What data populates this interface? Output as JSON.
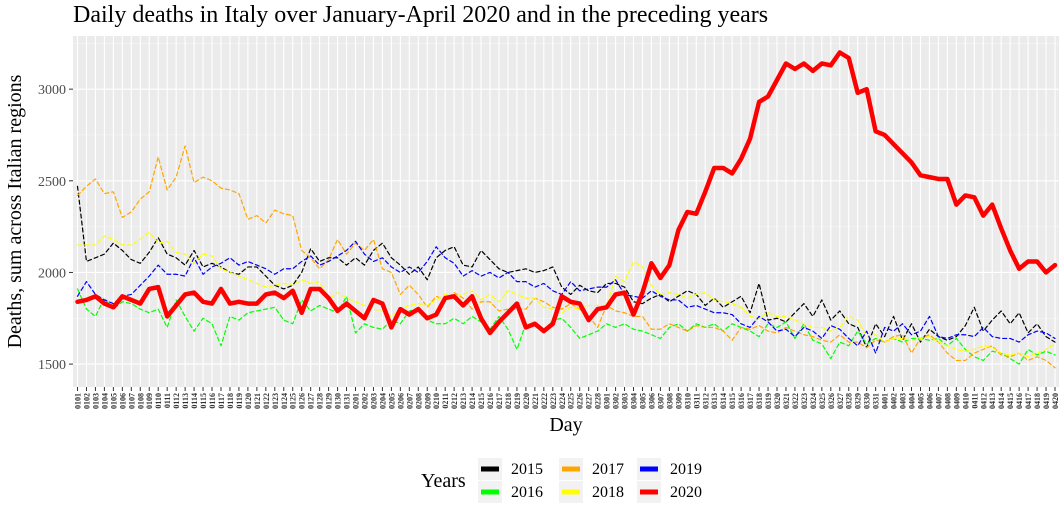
{
  "chart_data": {
    "type": "line",
    "title": "Daily deaths in Italy over January-April 2020 and in the preceding years",
    "xlabel": "Day",
    "ylabel": "Deaths, sum across Italian regions",
    "ylim": [
      1375,
      3290
    ],
    "y_ticks": [
      1500,
      2000,
      2500,
      3000
    ],
    "grid": true,
    "legend_placement": "bottom",
    "legend_title": "Years",
    "categories": [
      "0101",
      "0102",
      "0103",
      "0104",
      "0105",
      "0106",
      "0107",
      "0108",
      "0109",
      "0110",
      "0111",
      "0112",
      "0113",
      "0114",
      "0115",
      "0116",
      "0117",
      "0118",
      "0119",
      "0120",
      "0121",
      "0122",
      "0123",
      "0124",
      "0125",
      "0126",
      "0127",
      "0128",
      "0129",
      "0130",
      "0131",
      "0201",
      "0202",
      "0203",
      "0204",
      "0205",
      "0206",
      "0207",
      "0208",
      "0209",
      "0210",
      "0211",
      "0212",
      "0213",
      "0214",
      "0215",
      "0216",
      "0217",
      "0218",
      "0219",
      "0220",
      "0221",
      "0222",
      "0223",
      "0224",
      "0225",
      "0226",
      "0227",
      "0228",
      "0301",
      "0302",
      "0303",
      "0304",
      "0305",
      "0306",
      "0307",
      "0308",
      "0309",
      "0310",
      "0311",
      "0312",
      "0313",
      "0314",
      "0315",
      "0316",
      "0317",
      "0318",
      "0319",
      "0320",
      "0321",
      "0322",
      "0323",
      "0324",
      "0325",
      "0326",
      "0327",
      "0328",
      "0329",
      "0330",
      "0331",
      "0401",
      "0402",
      "0403",
      "0404",
      "0405",
      "0406",
      "0407",
      "0408",
      "0409",
      "0410",
      "0411",
      "0412",
      "0413",
      "0414",
      "0415",
      "0416",
      "0417",
      "0418",
      "0419",
      "0420"
    ],
    "series": [
      {
        "name": "2015",
        "color": "#000000",
        "dashed": true,
        "values": [
          2470,
          2060,
          2080,
          2100,
          2160,
          2120,
          2070,
          2050,
          2110,
          2190,
          2100,
          2080,
          2040,
          2120,
          2030,
          2050,
          2030,
          2000,
          1990,
          2030,
          2030,
          1980,
          1930,
          1910,
          1930,
          2000,
          2130,
          2060,
          2080,
          2080,
          2040,
          2080,
          2040,
          2120,
          2160,
          2080,
          2040,
          1990,
          2030,
          1960,
          2080,
          2120,
          2140,
          2040,
          2030,
          2120,
          2070,
          2020,
          2000,
          2010,
          2020,
          2000,
          2010,
          2030,
          1920,
          1880,
          1930,
          1900,
          1890,
          1940,
          1940,
          1920,
          1840,
          1830,
          1860,
          1880,
          1840,
          1870,
          1900,
          1880,
          1820,
          1860,
          1810,
          1840,
          1870,
          1780,
          1940,
          1740,
          1750,
          1730,
          1780,
          1830,
          1760,
          1850,
          1740,
          1790,
          1720,
          1700,
          1590,
          1720,
          1650,
          1760,
          1630,
          1720,
          1620,
          1690,
          1650,
          1630,
          1650,
          1710,
          1810,
          1680,
          1740,
          1790,
          1720,
          1780,
          1670,
          1720,
          1650,
          1620
        ]
      },
      {
        "name": "2016",
        "color": "#00ff00",
        "dashed": true,
        "values": [
          1910,
          1800,
          1760,
          1860,
          1800,
          1840,
          1830,
          1800,
          1780,
          1800,
          1700,
          1850,
          1760,
          1680,
          1750,
          1720,
          1600,
          1760,
          1740,
          1780,
          1790,
          1800,
          1810,
          1740,
          1720,
          1850,
          1790,
          1820,
          1800,
          1780,
          1870,
          1670,
          1720,
          1700,
          1690,
          1740,
          1720,
          1790,
          1800,
          1740,
          1720,
          1720,
          1750,
          1720,
          1760,
          1730,
          1690,
          1760,
          1690,
          1580,
          1720,
          1710,
          1680,
          1740,
          1750,
          1700,
          1640,
          1660,
          1680,
          1720,
          1700,
          1720,
          1690,
          1680,
          1660,
          1640,
          1700,
          1720,
          1680,
          1720,
          1700,
          1720,
          1680,
          1720,
          1700,
          1680,
          1650,
          1720,
          1700,
          1730,
          1640,
          1720,
          1630,
          1610,
          1530,
          1620,
          1600,
          1680,
          1610,
          1640,
          1620,
          1640,
          1620,
          1640,
          1640,
          1630,
          1640,
          1600,
          1640,
          1580,
          1540,
          1520,
          1570,
          1560,
          1530,
          1500,
          1580,
          1550,
          1570,
          1550
        ]
      },
      {
        "name": "2017",
        "color": "#ffa500",
        "dashed": true,
        "values": [
          2420,
          2470,
          2510,
          2430,
          2440,
          2300,
          2330,
          2400,
          2440,
          2630,
          2450,
          2520,
          2690,
          2490,
          2520,
          2500,
          2460,
          2450,
          2430,
          2290,
          2310,
          2270,
          2340,
          2320,
          2310,
          2120,
          2080,
          2020,
          2070,
          2180,
          2100,
          2160,
          2120,
          2180,
          2020,
          2000,
          1880,
          1930,
          1880,
          1810,
          1870,
          1850,
          1890,
          1860,
          1800,
          1840,
          1840,
          1790,
          1800,
          1800,
          1800,
          1860,
          1840,
          1810,
          1800,
          1830,
          1800,
          1760,
          1700,
          1820,
          1790,
          1780,
          1760,
          1760,
          1690,
          1690,
          1720,
          1700,
          1680,
          1710,
          1700,
          1700,
          1680,
          1630,
          1700,
          1690,
          1710,
          1680,
          1670,
          1700,
          1680,
          1660,
          1650,
          1630,
          1620,
          1660,
          1620,
          1620,
          1590,
          1630,
          1620,
          1650,
          1660,
          1560,
          1640,
          1660,
          1620,
          1560,
          1520,
          1520,
          1560,
          1580,
          1600,
          1550,
          1540,
          1560,
          1520,
          1540,
          1520,
          1480
        ]
      },
      {
        "name": "2018",
        "color": "#ffff00",
        "dashed": true,
        "values": [
          2150,
          2150,
          2150,
          2200,
          2180,
          2150,
          2150,
          2180,
          2220,
          2160,
          2170,
          2110,
          2100,
          2050,
          2100,
          2090,
          2020,
          2000,
          1980,
          1960,
          1940,
          1920,
          1930,
          1940,
          1930,
          1960,
          1940,
          1950,
          1850,
          1890,
          1860,
          1840,
          1820,
          1800,
          1790,
          1760,
          1800,
          1820,
          1830,
          1820,
          1850,
          1880,
          1870,
          1880,
          1900,
          1850,
          1880,
          1840,
          1900,
          1880,
          1860,
          1860,
          1810,
          1800,
          1780,
          1810,
          1800,
          1820,
          1820,
          1820,
          1980,
          1950,
          2060,
          2030,
          1930,
          1880,
          1890,
          1880,
          1860,
          1880,
          1890,
          1850,
          1840,
          1830,
          1810,
          1760,
          1750,
          1780,
          1760,
          1760,
          1740,
          1720,
          1700,
          1700,
          1680,
          1700,
          1760,
          1740,
          1650,
          1660,
          1620,
          1640,
          1640,
          1630,
          1640,
          1650,
          1620,
          1600,
          1580,
          1570,
          1580,
          1600,
          1590,
          1560,
          1550,
          1560,
          1540,
          1560,
          1580,
          1610
        ]
      },
      {
        "name": "2019",
        "color": "#0000ff",
        "dashed": true,
        "values": [
          1870,
          1950,
          1880,
          1850,
          1830,
          1870,
          1880,
          1930,
          1980,
          2040,
          1990,
          1990,
          1980,
          2080,
          1990,
          2030,
          2050,
          2080,
          2040,
          2060,
          2040,
          2020,
          1990,
          2020,
          2020,
          2060,
          2090,
          2040,
          2060,
          2090,
          2120,
          2170,
          2100,
          2060,
          2080,
          2030,
          2000,
          2030,
          2000,
          2060,
          2140,
          2080,
          2050,
          1980,
          2010,
          1980,
          2000,
          1970,
          2000,
          1950,
          1950,
          1920,
          1940,
          1900,
          1880,
          1950,
          1900,
          1910,
          1920,
          1920,
          1960,
          1880,
          1870,
          1860,
          1900,
          1870,
          1850,
          1850,
          1810,
          1820,
          1800,
          1780,
          1780,
          1770,
          1720,
          1700,
          1760,
          1730,
          1680,
          1690,
          1650,
          1700,
          1680,
          1640,
          1710,
          1690,
          1640,
          1600,
          1680,
          1560,
          1700,
          1680,
          1720,
          1660,
          1680,
          1760,
          1650,
          1640,
          1660,
          1660,
          1650,
          1700,
          1650,
          1640,
          1640,
          1620,
          1660,
          1680,
          1670,
          1640
        ]
      },
      {
        "name": "2020",
        "color": "#ff0000",
        "dashed": false,
        "values": [
          1840,
          1850,
          1870,
          1830,
          1810,
          1870,
          1850,
          1830,
          1910,
          1920,
          1760,
          1820,
          1880,
          1890,
          1840,
          1830,
          1910,
          1830,
          1840,
          1830,
          1830,
          1880,
          1890,
          1860,
          1900,
          1780,
          1910,
          1910,
          1860,
          1790,
          1830,
          1790,
          1750,
          1850,
          1830,
          1700,
          1800,
          1770,
          1800,
          1750,
          1770,
          1860,
          1870,
          1820,
          1870,
          1750,
          1670,
          1730,
          1780,
          1830,
          1700,
          1720,
          1680,
          1720,
          1870,
          1840,
          1830,
          1740,
          1800,
          1810,
          1880,
          1890,
          1770,
          1890,
          2050,
          1970,
          2040,
          2230,
          2330,
          2320,
          2440,
          2570,
          2570,
          2540,
          2620,
          2730,
          2930,
          2960,
          3050,
          3140,
          3110,
          3140,
          3100,
          3140,
          3130,
          3200,
          3170,
          2980,
          3000,
          2770,
          2750,
          2700,
          2650,
          2600,
          2530,
          2520,
          2510,
          2510,
          2370,
          2420,
          2410,
          2310,
          2370,
          2240,
          2120,
          2020,
          2060,
          2060,
          2000,
          2040
        ]
      }
    ]
  }
}
